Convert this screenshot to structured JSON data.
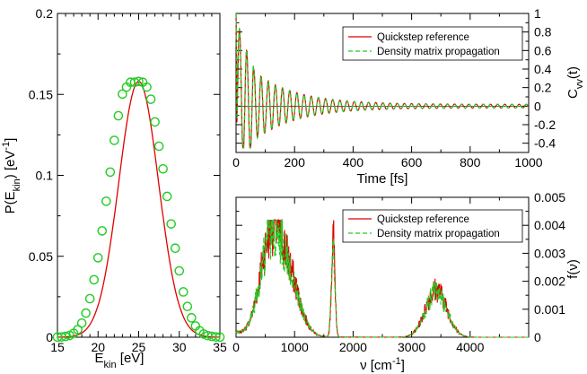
{
  "chart_data": [
    {
      "type": "line",
      "title": "",
      "xlabel": "E_kin [eV]",
      "ylabel": "P(E_kin) [eV^-1]",
      "xlim": [
        15,
        35
      ],
      "ylim": [
        0,
        0.2
      ],
      "xticks": [
        "15",
        "20",
        "25",
        "30",
        "35"
      ],
      "yticks": [
        "0",
        "0.05",
        "0.1",
        "0.15",
        "0.2"
      ],
      "grid": false,
      "legend": null,
      "series": [
        {
          "style": "solid red line",
          "color": "#e00000",
          "model": "gaussian",
          "mu": 25.0,
          "sigma": 2.45,
          "amplitude": 0.158
        },
        {
          "style": "open green circles",
          "color": "#22cc22",
          "x": [
            15.0,
            15.5,
            16.0,
            16.5,
            17.0,
            17.5,
            18.0,
            18.5,
            19.0,
            19.5,
            20.0,
            20.5,
            21.0,
            21.5,
            22.0,
            22.5,
            23.0,
            23.5,
            24.0,
            24.5,
            25.0,
            25.5,
            26.0,
            26.5,
            27.0,
            27.5,
            28.0,
            28.5,
            29.0,
            29.5,
            30.0,
            30.5,
            31.0,
            31.5,
            32.0,
            32.5,
            33.0,
            33.5,
            34.0,
            34.5,
            35.0
          ],
          "y": [
            0.0001,
            0.0002,
            0.0005,
            0.0011,
            0.0024,
            0.0047,
            0.0087,
            0.0149,
            0.0238,
            0.0355,
            0.0491,
            0.0657,
            0.084,
            0.102,
            0.1216,
            0.1368,
            0.1502,
            0.1545,
            0.1575,
            0.1575,
            0.158,
            0.1575,
            0.1545,
            0.147,
            0.133,
            0.118,
            0.104,
            0.087,
            0.07,
            0.055,
            0.041,
            0.028,
            0.019,
            0.012,
            0.007,
            0.004,
            0.002,
            0.001,
            0.0005,
            0.0002,
            0.0001
          ]
        }
      ]
    },
    {
      "type": "line",
      "title": "",
      "xlabel": "Time [fs]",
      "ylabel": "C_vv(t)",
      "xlim": [
        0,
        1000
      ],
      "ylim": [
        -0.5,
        1
      ],
      "xticks": [
        "0",
        "200",
        "400",
        "600",
        "800",
        "1000"
      ],
      "yticks": [
        "-0.4",
        "-0.2",
        "0",
        "0.2",
        "0.4",
        "0.6",
        "0.8",
        "1"
      ],
      "grid": false,
      "legend": {
        "placement": "top-right",
        "entries": [
          "Quickstep reference",
          "Density matrix propagation"
        ]
      },
      "series": [
        {
          "name": "Quickstep reference",
          "style": "solid",
          "color": "#e00000",
          "model": "damped oscillation from 1 at t=0, dips to about -0.38 near 40 fs, ~25 fs period, decays to 0 by ~600 fs"
        },
        {
          "name": "Density matrix propagation",
          "style": "dashed",
          "color": "#22cc22",
          "model": "nearly identical to reference"
        }
      ]
    },
    {
      "type": "line",
      "title": "",
      "xlabel": "ν [cm^-1]",
      "ylabel": "f(ν)",
      "xlim": [
        0,
        5000
      ],
      "ylim": [
        0,
        0.005
      ],
      "xticks": [
        "0",
        "1000",
        "2000",
        "3000",
        "4000"
      ],
      "yticks": [
        "0",
        "0.001",
        "0.002",
        "0.003",
        "0.004",
        "0.005"
      ],
      "grid": false,
      "legend": {
        "placement": "top-right",
        "entries": [
          "Quickstep reference",
          "Density matrix propagation"
        ]
      },
      "series": [
        {
          "name": "Quickstep reference",
          "style": "solid",
          "color": "#e00000",
          "peaks": [
            {
              "center": 580,
              "height": 0.0031,
              "width": 180
            },
            {
              "center": 880,
              "height": 0.0021,
              "width": 200
            },
            {
              "center": 1660,
              "height": 0.0035,
              "width": 30
            },
            {
              "center": 3420,
              "height": 0.0017,
              "width": 180
            }
          ]
        },
        {
          "name": "Density matrix propagation",
          "style": "dashed",
          "color": "#22cc22",
          "peaks": [
            {
              "center": 580,
              "height": 0.003,
              "width": 180
            },
            {
              "center": 880,
              "height": 0.002,
              "width": 200
            },
            {
              "center": 1660,
              "height": 0.0034,
              "width": 30
            },
            {
              "center": 3420,
              "height": 0.0016,
              "width": 180
            }
          ]
        }
      ]
    }
  ]
}
